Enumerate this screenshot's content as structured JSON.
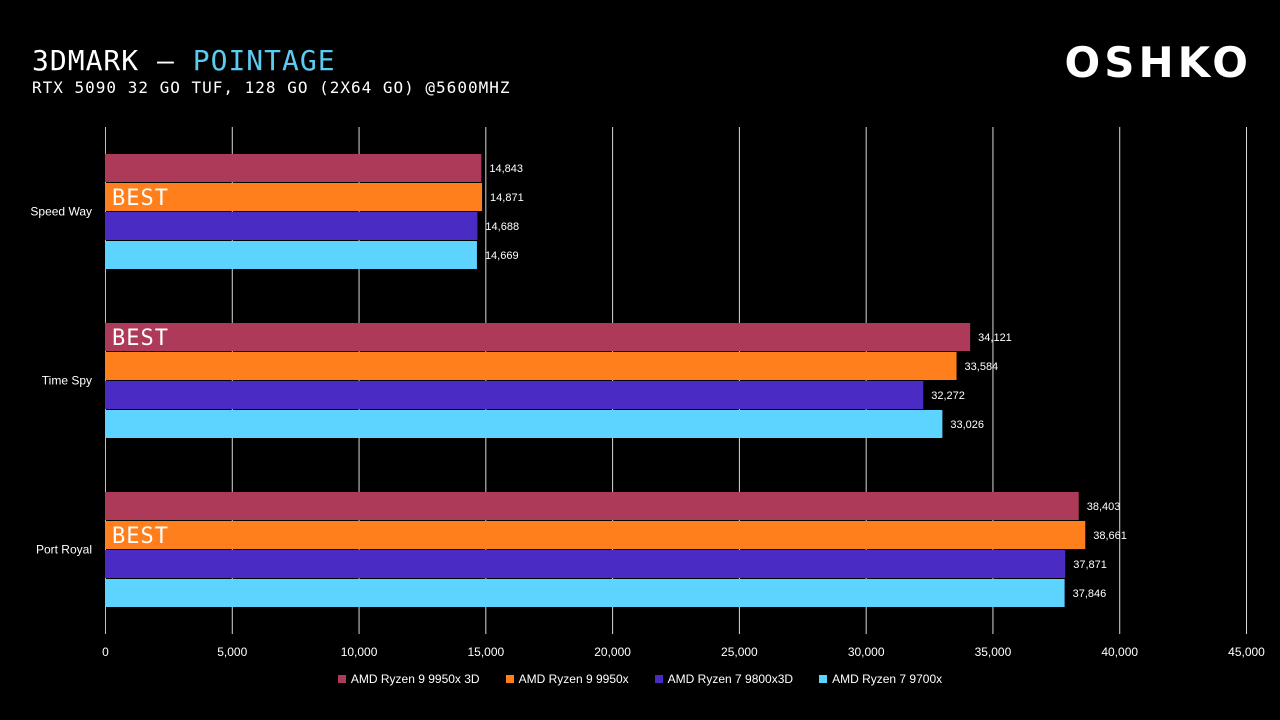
{
  "header": {
    "title_main": "3DMARK",
    "title_sep": " – ",
    "title_accent": "POINTAGE",
    "subtitle": "RTX 5090 32 GO TUF, 128 GO (2X64 GO) @5600MHZ",
    "logo": "OSHKO"
  },
  "chart_data": {
    "type": "bar",
    "orientation": "horizontal",
    "categories": [
      "Speed Way",
      "Time Spy",
      "Port Royal"
    ],
    "series": [
      {
        "name": "AMD Ryzen 9 9950x 3D",
        "color": "#ad3a58",
        "values": [
          14843,
          34121,
          38403
        ],
        "labels": [
          "14,843",
          "34,121",
          "38,403"
        ]
      },
      {
        "name": "AMD Ryzen 9 9950x",
        "color": "#ff7f1c",
        "values": [
          14871,
          33584,
          38661
        ],
        "labels": [
          "14,871",
          "33,584",
          "38,661"
        ]
      },
      {
        "name": "AMD Ryzen 7 9800x3D",
        "color": "#4a2bc4",
        "values": [
          14688,
          32272,
          37871
        ],
        "labels": [
          "14,688",
          "32,272",
          "37,871"
        ]
      },
      {
        "name": "AMD Ryzen 7 9700x",
        "color": "#5dd3ff",
        "values": [
          14669,
          33026,
          37846
        ],
        "labels": [
          "14,669",
          "33,026",
          "37,846"
        ]
      }
    ],
    "best_label": "BEST",
    "best": [
      {
        "category": 0,
        "series": 1
      },
      {
        "category": 1,
        "series": 0
      },
      {
        "category": 2,
        "series": 1
      }
    ],
    "xlim": [
      0,
      45000
    ],
    "xticks": [
      0,
      5000,
      10000,
      15000,
      20000,
      25000,
      30000,
      35000,
      40000,
      45000
    ],
    "xtick_labels": [
      "0",
      "5,000",
      "10,000",
      "15,000",
      "20,000",
      "25,000",
      "30,000",
      "35,000",
      "40,000",
      "45,000"
    ],
    "grid": true,
    "legend_position": "bottom"
  }
}
